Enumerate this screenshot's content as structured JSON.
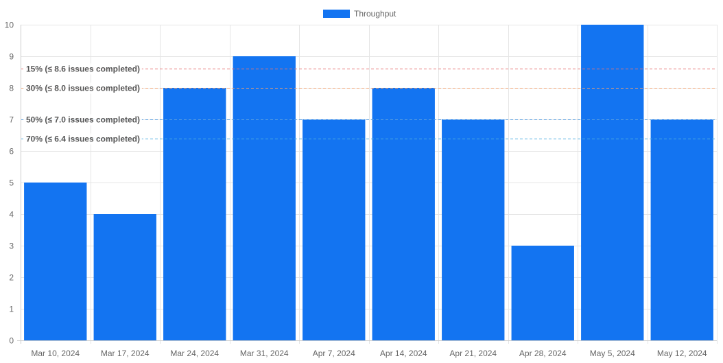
{
  "chart_data": {
    "type": "bar",
    "categories": [
      "Mar 10, 2024",
      "Mar 17, 2024",
      "Mar 24, 2024",
      "Mar 31, 2024",
      "Apr 7, 2024",
      "Apr 14, 2024",
      "Apr 21, 2024",
      "Apr 28, 2024",
      "May 5, 2024",
      "May 12, 2024"
    ],
    "series": [
      {
        "name": "Throughput",
        "values": [
          5,
          4,
          8,
          9,
          7,
          8,
          7,
          3,
          10,
          7
        ],
        "color": "#1374f1"
      }
    ],
    "ylim": [
      0,
      10
    ],
    "yticks": [
      0,
      1,
      2,
      3,
      4,
      5,
      6,
      7,
      8,
      9,
      10
    ],
    "grid": true,
    "legend_position": "top-center",
    "reference_lines": [
      {
        "label": "15% (≤ 8.6 issues completed)",
        "value": 8.6,
        "color": "#e57373"
      },
      {
        "label": "30% (≤ 8.0 issues completed)",
        "value": 8.0,
        "color": "#f0a070"
      },
      {
        "label": "50% (≤ 7.0 issues completed)",
        "value": 7.0,
        "color": "#5a9fe0"
      },
      {
        "label": "70% (≤ 6.4 issues completed)",
        "value": 6.4,
        "color": "#4faee0"
      }
    ]
  }
}
